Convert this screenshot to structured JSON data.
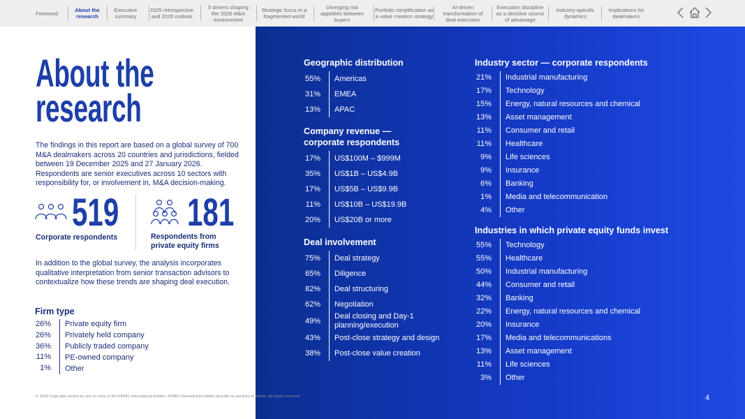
{
  "nav": {
    "items": [
      "Foreword",
      "About the research",
      "Executive summary",
      "2025 retrospective and 2026 outlook",
      "5 drivers shaping the 2026 M&A environment",
      "Strategic focus in a fragmented world",
      "Diverging risk appetites between buyers",
      "Portfolio simplification as a value creation strategy",
      "AI-driven transformation of deal execution",
      "Execution discipline as a decisive source of advantage",
      "Industry-specific dynamics",
      "Implications for dealmakers"
    ]
  },
  "title": "About the research",
  "intro": "The findings in this report are based on a global survey of 700 M&A dealmakers across 20 countries and jurisdictions, fielded between 19 December 2025 and 27 January 2026. Respondents are senior executives across 10 sectors with responsibility for, or involvement in, M&A decision-making.",
  "stats": [
    {
      "value": "519",
      "label": "Corporate respondents"
    },
    {
      "value": "181",
      "label": "Respondents from private equity firms"
    }
  ],
  "note": "In addition to the global survey, the analysis incorporates qualitative interpretation from senior transaction advisors to contextualize how these trends are shaping deal execution.",
  "firm_type": {
    "title": "Firm type",
    "rows": [
      {
        "pct": "26%",
        "label": "Private equity firm"
      },
      {
        "pct": "26%",
        "label": "Privately held company"
      },
      {
        "pct": "36%",
        "label": "Publicly traded company"
      },
      {
        "pct": "11%",
        "label": "PE-owned company"
      },
      {
        "pct": "1%",
        "label": "Other"
      }
    ]
  },
  "sections": [
    {
      "title": "Geographic distribution",
      "rows": [
        {
          "pct": "55%",
          "label": "Americas"
        },
        {
          "pct": "31%",
          "label": "EMEA"
        },
        {
          "pct": "13%",
          "label": "APAC"
        }
      ]
    },
    {
      "title": "Company revenue — corporate respondents",
      "rows": [
        {
          "pct": "17%",
          "label": "US$100M – $999M"
        },
        {
          "pct": "35%",
          "label": "US$1B – US$4.9B"
        },
        {
          "pct": "17%",
          "label": "US$5B – US$9.9B"
        },
        {
          "pct": "11%",
          "label": "US$10B – US$19.9B"
        },
        {
          "pct": "20%",
          "label": "US$20B or more"
        }
      ]
    },
    {
      "title": "Deal involvement",
      "rows": [
        {
          "pct": "75%",
          "label": "Deal strategy"
        },
        {
          "pct": "65%",
          "label": "Diligence"
        },
        {
          "pct": "82%",
          "label": "Deal structuring"
        },
        {
          "pct": "62%",
          "label": "Negotiation"
        },
        {
          "pct": "49%",
          "label": "Deal closing and Day-1 planning/execution"
        },
        {
          "pct": "43%",
          "label": "Post-close strategy and design"
        },
        {
          "pct": "38%",
          "label": "Post-close value creation"
        }
      ]
    },
    {
      "title": "Industry sector — corporate respondents",
      "rows": [
        {
          "pct": "21%",
          "label": "Industrial manufacturing"
        },
        {
          "pct": "17%",
          "label": "Technology"
        },
        {
          "pct": "15%",
          "label": "Energy, natural resources and chemical"
        },
        {
          "pct": "13%",
          "label": "Asset management"
        },
        {
          "pct": "11%",
          "label": "Consumer and retail"
        },
        {
          "pct": "11%",
          "label": "Healthcare"
        },
        {
          "pct": "9%",
          "label": "Life sciences"
        },
        {
          "pct": "9%",
          "label": "Insurance"
        },
        {
          "pct": "6%",
          "label": "Banking"
        },
        {
          "pct": "1%",
          "label": "Media and telecommunication"
        },
        {
          "pct": "4%",
          "label": "Other"
        }
      ]
    },
    {
      "title": "Industries in which private equity funds invest",
      "rows": [
        {
          "pct": "55%",
          "label": "Technology"
        },
        {
          "pct": "55%",
          "label": "Healthcare"
        },
        {
          "pct": "50%",
          "label": "Industrial manufacturing"
        },
        {
          "pct": "44%",
          "label": "Consumer and retail"
        },
        {
          "pct": "32%",
          "label": "Banking"
        },
        {
          "pct": "22%",
          "label": "Energy, natural resources and chemical"
        },
        {
          "pct": "20%",
          "label": "Insurance"
        },
        {
          "pct": "17%",
          "label": "Media and telecommunications"
        },
        {
          "pct": "13%",
          "label": "Asset management"
        },
        {
          "pct": "11%",
          "label": "Life sciences"
        },
        {
          "pct": "3%",
          "label": "Other"
        }
      ]
    }
  ],
  "footer": "© 2026 Copyright owned by one or more of the KPMG International entities. KPMG International entities provide no services to clients. All rights reserved.",
  "page_number": "4"
}
